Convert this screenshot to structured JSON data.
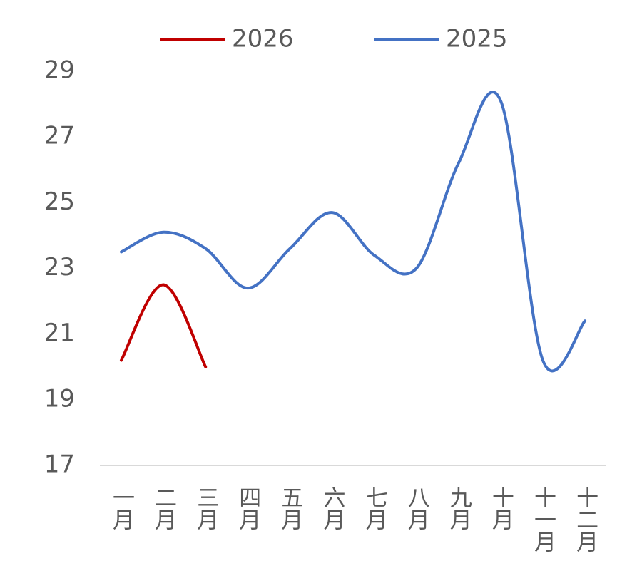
{
  "chart_data": {
    "type": "line",
    "categories": [
      "一月",
      "二月",
      "三月",
      "四月",
      "五月",
      "六月",
      "七月",
      "八月",
      "九月",
      "十月",
      "十一月",
      "十二月"
    ],
    "series": [
      {
        "name": "2026",
        "color": "#c00000",
        "values": [
          20.2,
          22.5,
          20.0,
          null,
          null,
          null,
          null,
          null,
          null,
          null,
          null,
          null
        ]
      },
      {
        "name": "2025",
        "color": "#4472c4",
        "values": [
          23.5,
          24.1,
          23.6,
          22.4,
          23.6,
          24.7,
          23.4,
          23.0,
          26.2,
          28.1,
          20.2,
          21.4
        ]
      }
    ],
    "ylim": [
      17,
      29
    ],
    "yticks": [
      17,
      19,
      21,
      23,
      25,
      27,
      29
    ],
    "grid": false,
    "smooth": true,
    "legend": "top"
  }
}
